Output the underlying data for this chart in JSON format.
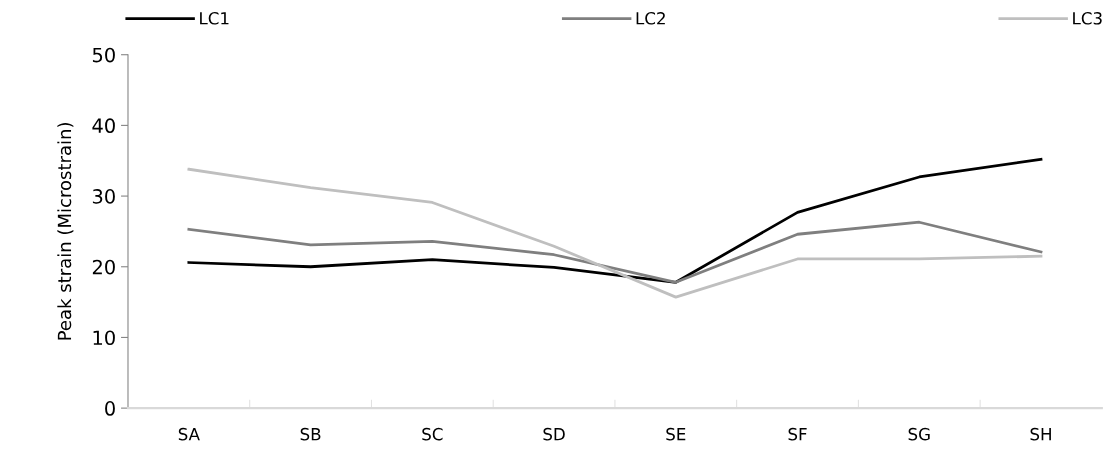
{
  "chart_data": {
    "type": "line",
    "ylabel": "Peak strain (Microstrain)",
    "categories": [
      "SA",
      "SB",
      "SC",
      "SD",
      "SE",
      "SF",
      "SG",
      "SH"
    ],
    "series": [
      {
        "name": "LC1",
        "color": "#000000",
        "values": [
          20.6,
          20.0,
          21.0,
          19.9,
          17.8,
          27.7,
          32.7,
          35.2
        ]
      },
      {
        "name": "LC2",
        "color": "#7f7f7f",
        "values": [
          25.3,
          23.1,
          23.6,
          21.7,
          17.8,
          24.6,
          26.3,
          22.1
        ]
      },
      {
        "name": "LC3",
        "color": "#bfbfbf",
        "values": [
          33.8,
          31.2,
          29.1,
          22.9,
          15.7,
          21.1,
          21.1,
          21.5
        ]
      }
    ],
    "ylim": [
      0,
      50
    ],
    "yticks": [
      0,
      10,
      20,
      30,
      40,
      50
    ],
    "grid": false,
    "legend": "top",
    "marker": "none",
    "line_style": "solid"
  }
}
